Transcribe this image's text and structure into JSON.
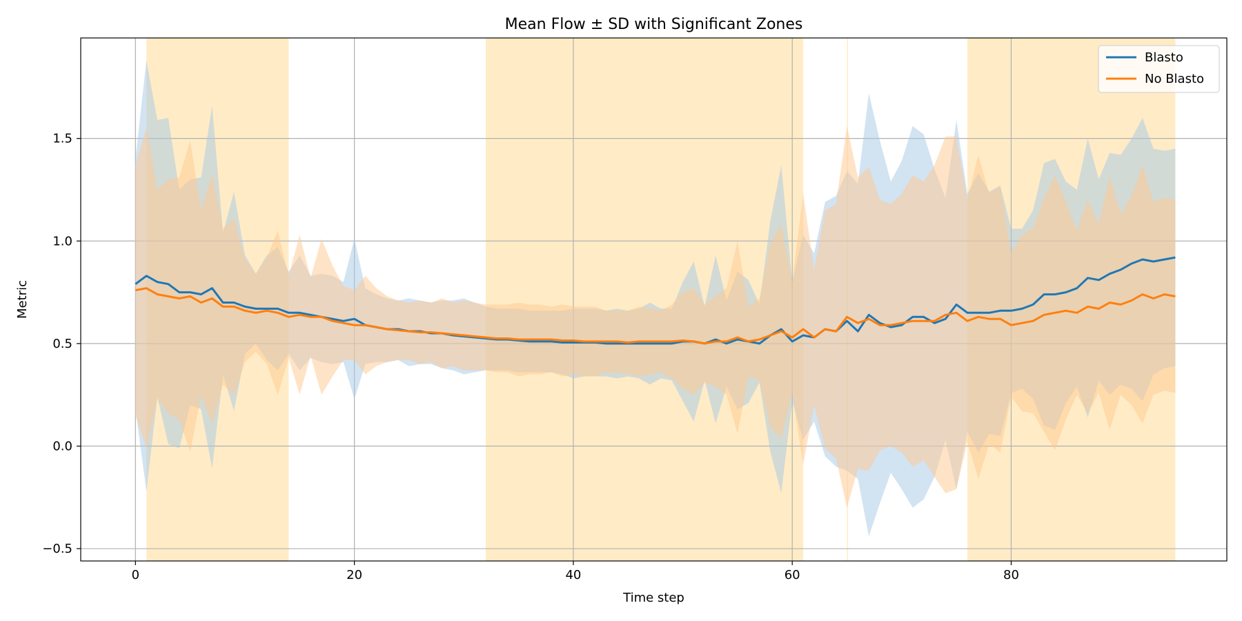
{
  "chart_data": {
    "type": "line",
    "title": "Mean Flow ± SD with Significant Zones",
    "xlabel": "Time step",
    "ylabel": "Metric",
    "xlim": [
      -5,
      99.7
    ],
    "ylim": [
      -0.56,
      1.99
    ],
    "x_ticks": [
      0,
      20,
      40,
      60,
      80
    ],
    "y_ticks": [
      -0.5,
      0.0,
      0.5,
      1.0,
      1.5
    ],
    "x_tick_labels": [
      "0",
      "20",
      "40",
      "60",
      "80"
    ],
    "y_tick_labels": [
      "−0.5",
      "0.0",
      "0.5",
      "1.0",
      "1.5"
    ],
    "grid": true,
    "legend_position": "top-right",
    "significant_zones": [
      [
        1,
        14
      ],
      [
        32,
        61
      ],
      [
        65,
        65.1
      ],
      [
        76,
        95
      ]
    ],
    "zone_color": "#ffe0a0",
    "x": [
      0,
      1,
      2,
      3,
      4,
      5,
      6,
      7,
      8,
      9,
      10,
      11,
      12,
      13,
      14,
      15,
      16,
      17,
      18,
      19,
      20,
      21,
      22,
      23,
      24,
      25,
      26,
      27,
      28,
      29,
      30,
      31,
      32,
      33,
      34,
      35,
      36,
      37,
      38,
      39,
      40,
      41,
      42,
      43,
      44,
      45,
      46,
      47,
      48,
      49,
      50,
      51,
      52,
      53,
      54,
      55,
      56,
      57,
      58,
      59,
      60,
      61,
      62,
      63,
      64,
      65,
      66,
      67,
      68,
      69,
      70,
      71,
      72,
      73,
      74,
      75,
      76,
      77,
      78,
      79,
      80,
      81,
      82,
      83,
      84,
      85,
      86,
      87,
      88,
      89,
      90,
      91,
      92,
      93,
      94,
      95
    ],
    "series": [
      {
        "name": "Blasto",
        "color": "#1f77b4",
        "band_color": "#a6c8e6",
        "mean": [
          0.79,
          0.83,
          0.8,
          0.79,
          0.75,
          0.75,
          0.74,
          0.77,
          0.7,
          0.7,
          0.68,
          0.67,
          0.67,
          0.67,
          0.65,
          0.65,
          0.64,
          0.63,
          0.62,
          0.61,
          0.62,
          0.59,
          0.58,
          0.57,
          0.57,
          0.56,
          0.56,
          0.55,
          0.55,
          0.54,
          0.535,
          0.53,
          0.525,
          0.52,
          0.52,
          0.515,
          0.51,
          0.51,
          0.51,
          0.505,
          0.505,
          0.505,
          0.505,
          0.5,
          0.5,
          0.5,
          0.5,
          0.5,
          0.5,
          0.5,
          0.51,
          0.51,
          0.5,
          0.52,
          0.5,
          0.52,
          0.51,
          0.5,
          0.54,
          0.57,
          0.51,
          0.54,
          0.53,
          0.57,
          0.56,
          0.61,
          0.56,
          0.64,
          0.6,
          0.58,
          0.59,
          0.63,
          0.63,
          0.6,
          0.62,
          0.69,
          0.65,
          0.65,
          0.65,
          0.66,
          0.66,
          0.67,
          0.69,
          0.74,
          0.74,
          0.75,
          0.77,
          0.82,
          0.81,
          0.84,
          0.86,
          0.89,
          0.91,
          0.9,
          0.91,
          0.92
        ],
        "upper": [
          1.4,
          1.88,
          1.59,
          1.6,
          1.25,
          1.3,
          1.31,
          1.66,
          1.04,
          1.24,
          0.93,
          0.84,
          0.93,
          0.97,
          0.85,
          0.93,
          0.83,
          0.84,
          0.83,
          0.8,
          1.01,
          0.77,
          0.74,
          0.72,
          0.71,
          0.72,
          0.71,
          0.7,
          0.71,
          0.71,
          0.72,
          0.7,
          0.68,
          0.67,
          0.67,
          0.67,
          0.66,
          0.66,
          0.66,
          0.66,
          0.67,
          0.67,
          0.67,
          0.66,
          0.67,
          0.66,
          0.67,
          0.7,
          0.67,
          0.67,
          0.8,
          0.9,
          0.68,
          0.93,
          0.71,
          0.85,
          0.81,
          0.69,
          1.1,
          1.37,
          0.8,
          1.03,
          0.94,
          1.19,
          1.22,
          1.34,
          1.28,
          1.72,
          1.49,
          1.29,
          1.39,
          1.56,
          1.52,
          1.35,
          1.21,
          1.59,
          1.23,
          1.33,
          1.24,
          1.27,
          1.06,
          1.06,
          1.15,
          1.38,
          1.4,
          1.29,
          1.25,
          1.5,
          1.3,
          1.43,
          1.42,
          1.5,
          1.6,
          1.45,
          1.44,
          1.45
        ],
        "lower": [
          0.18,
          -0.22,
          0.24,
          0.01,
          -0.01,
          0.2,
          0.18,
          -0.11,
          0.35,
          0.17,
          0.45,
          0.5,
          0.42,
          0.37,
          0.45,
          0.37,
          0.43,
          0.41,
          0.4,
          0.41,
          0.23,
          0.4,
          0.41,
          0.41,
          0.42,
          0.39,
          0.4,
          0.4,
          0.38,
          0.37,
          0.35,
          0.36,
          0.37,
          0.37,
          0.37,
          0.36,
          0.36,
          0.36,
          0.36,
          0.35,
          0.33,
          0.34,
          0.34,
          0.34,
          0.33,
          0.34,
          0.33,
          0.3,
          0.33,
          0.32,
          0.22,
          0.12,
          0.32,
          0.11,
          0.29,
          0.18,
          0.21,
          0.31,
          -0.03,
          -0.23,
          0.22,
          0.03,
          0.12,
          -0.05,
          -0.1,
          -0.12,
          -0.16,
          -0.44,
          -0.28,
          -0.13,
          -0.21,
          -0.3,
          -0.26,
          -0.15,
          0.03,
          -0.21,
          0.07,
          -0.03,
          0.06,
          0.05,
          0.26,
          0.28,
          0.23,
          0.1,
          0.08,
          0.21,
          0.29,
          0.14,
          0.32,
          0.25,
          0.3,
          0.28,
          0.22,
          0.35,
          0.38,
          0.39
        ]
      },
      {
        "name": "No Blasto",
        "color": "#ff7f0e",
        "band_color": "#ffc88e",
        "mean": [
          0.76,
          0.77,
          0.74,
          0.73,
          0.72,
          0.73,
          0.7,
          0.72,
          0.68,
          0.68,
          0.66,
          0.65,
          0.66,
          0.65,
          0.63,
          0.64,
          0.63,
          0.63,
          0.61,
          0.6,
          0.59,
          0.59,
          0.58,
          0.57,
          0.565,
          0.56,
          0.555,
          0.555,
          0.55,
          0.545,
          0.54,
          0.535,
          0.53,
          0.525,
          0.525,
          0.52,
          0.52,
          0.52,
          0.52,
          0.515,
          0.515,
          0.51,
          0.51,
          0.51,
          0.51,
          0.505,
          0.51,
          0.51,
          0.51,
          0.51,
          0.515,
          0.51,
          0.5,
          0.51,
          0.51,
          0.53,
          0.51,
          0.52,
          0.54,
          0.56,
          0.53,
          0.57,
          0.53,
          0.57,
          0.56,
          0.63,
          0.6,
          0.62,
          0.59,
          0.59,
          0.6,
          0.61,
          0.61,
          0.61,
          0.64,
          0.65,
          0.61,
          0.63,
          0.62,
          0.62,
          0.59,
          0.6,
          0.61,
          0.64,
          0.65,
          0.66,
          0.65,
          0.68,
          0.67,
          0.7,
          0.69,
          0.71,
          0.74,
          0.72,
          0.74,
          0.73
        ],
        "upper": [
          1.37,
          1.55,
          1.25,
          1.3,
          1.31,
          1.49,
          1.15,
          1.33,
          1.06,
          1.11,
          0.91,
          0.84,
          0.92,
          1.05,
          0.83,
          1.03,
          0.82,
          1.01,
          0.88,
          0.78,
          0.76,
          0.83,
          0.77,
          0.73,
          0.71,
          0.7,
          0.71,
          0.7,
          0.72,
          0.7,
          0.71,
          0.7,
          0.69,
          0.69,
          0.69,
          0.7,
          0.69,
          0.69,
          0.68,
          0.69,
          0.68,
          0.68,
          0.68,
          0.66,
          0.66,
          0.66,
          0.68,
          0.67,
          0.66,
          0.69,
          0.75,
          0.77,
          0.69,
          0.73,
          0.77,
          1.0,
          0.68,
          0.72,
          0.99,
          1.08,
          0.8,
          1.23,
          0.86,
          1.15,
          1.18,
          1.56,
          1.31,
          1.36,
          1.2,
          1.18,
          1.23,
          1.32,
          1.29,
          1.37,
          1.51,
          1.51,
          1.2,
          1.42,
          1.23,
          1.27,
          0.94,
          1.03,
          1.06,
          1.21,
          1.32,
          1.19,
          1.05,
          1.2,
          1.08,
          1.32,
          1.13,
          1.22,
          1.37,
          1.19,
          1.21,
          1.2
        ],
        "lower": [
          0.15,
          -0.01,
          0.23,
          0.16,
          0.13,
          -0.03,
          0.25,
          0.11,
          0.3,
          0.25,
          0.41,
          0.46,
          0.4,
          0.25,
          0.43,
          0.25,
          0.44,
          0.25,
          0.34,
          0.42,
          0.42,
          0.35,
          0.39,
          0.41,
          0.42,
          0.42,
          0.4,
          0.41,
          0.38,
          0.39,
          0.37,
          0.37,
          0.37,
          0.36,
          0.36,
          0.34,
          0.35,
          0.35,
          0.36,
          0.34,
          0.35,
          0.34,
          0.34,
          0.36,
          0.36,
          0.35,
          0.34,
          0.35,
          0.36,
          0.33,
          0.28,
          0.25,
          0.31,
          0.29,
          0.25,
          0.06,
          0.34,
          0.32,
          0.09,
          0.04,
          0.26,
          -0.09,
          0.2,
          -0.01,
          -0.06,
          -0.3,
          -0.11,
          -0.12,
          -0.02,
          0.0,
          -0.03,
          -0.1,
          -0.07,
          -0.15,
          -0.23,
          -0.21,
          0.02,
          -0.16,
          0.01,
          -0.03,
          0.24,
          0.17,
          0.16,
          0.07,
          -0.02,
          0.13,
          0.25,
          0.16,
          0.26,
          0.08,
          0.25,
          0.2,
          0.11,
          0.25,
          0.27,
          0.26
        ]
      }
    ]
  }
}
